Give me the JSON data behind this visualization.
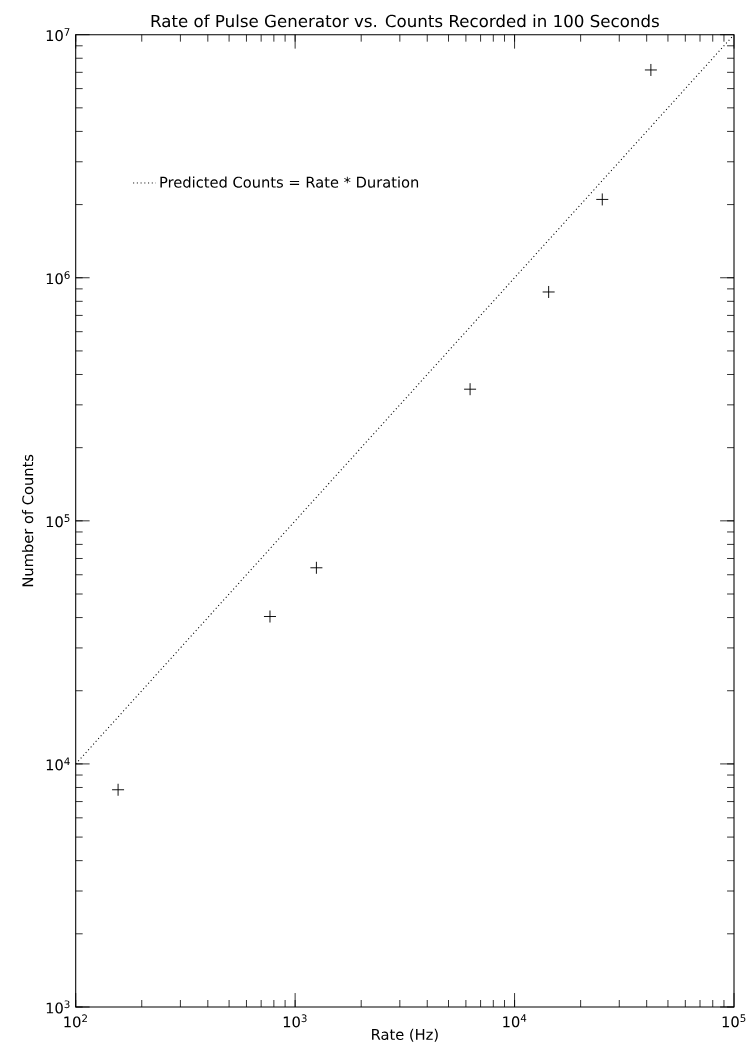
{
  "chart_data": {
    "type": "scatter",
    "title": "Rate of Pulse Generator vs. Counts Recorded in 100 Seconds",
    "xlabel": "Rate (Hz)",
    "ylabel": "Number of Counts",
    "log": "xy",
    "grid": false,
    "legend": "top left",
    "marker": "cross",
    "x": [
      156,
      768,
      1250,
      6270,
      14300,
      25100,
      41800
    ],
    "series": [
      {
        "color": "#000000",
        "values": [
          7830,
          40400,
          64100,
          348000,
          874000,
          2100000,
          7160000
        ]
      },
      {
        "type": "line",
        "name": "Predicted Counts = Rate * Duration",
        "color": "#000000",
        "line_style": "dotted",
        "marker": "none",
        "x": [
          100,
          100000
        ],
        "values": [
          10000,
          10000000
        ]
      }
    ],
    "xlim": [
      100,
      100000
    ],
    "ylim": [
      1000,
      10000000
    ],
    "xticks": [
      {
        "value": 100,
        "label": "10$^{2}$"
      },
      {
        "value": 1000,
        "label": "10$^{3}$"
      },
      {
        "value": 10000,
        "label": "10$^{4}$"
      },
      {
        "value": 100000,
        "label": "10$^{5}$"
      }
    ],
    "yticks": [
      {
        "value": 1000,
        "label": "10$^{3}$"
      },
      {
        "value": 10000,
        "label": "10$^{4}$"
      },
      {
        "value": 100000,
        "label": "10$^{5}$"
      },
      {
        "value": 1000000,
        "label": "10$^{6}$"
      },
      {
        "value": 10000000,
        "label": "10$^{7}$"
      }
    ]
  }
}
